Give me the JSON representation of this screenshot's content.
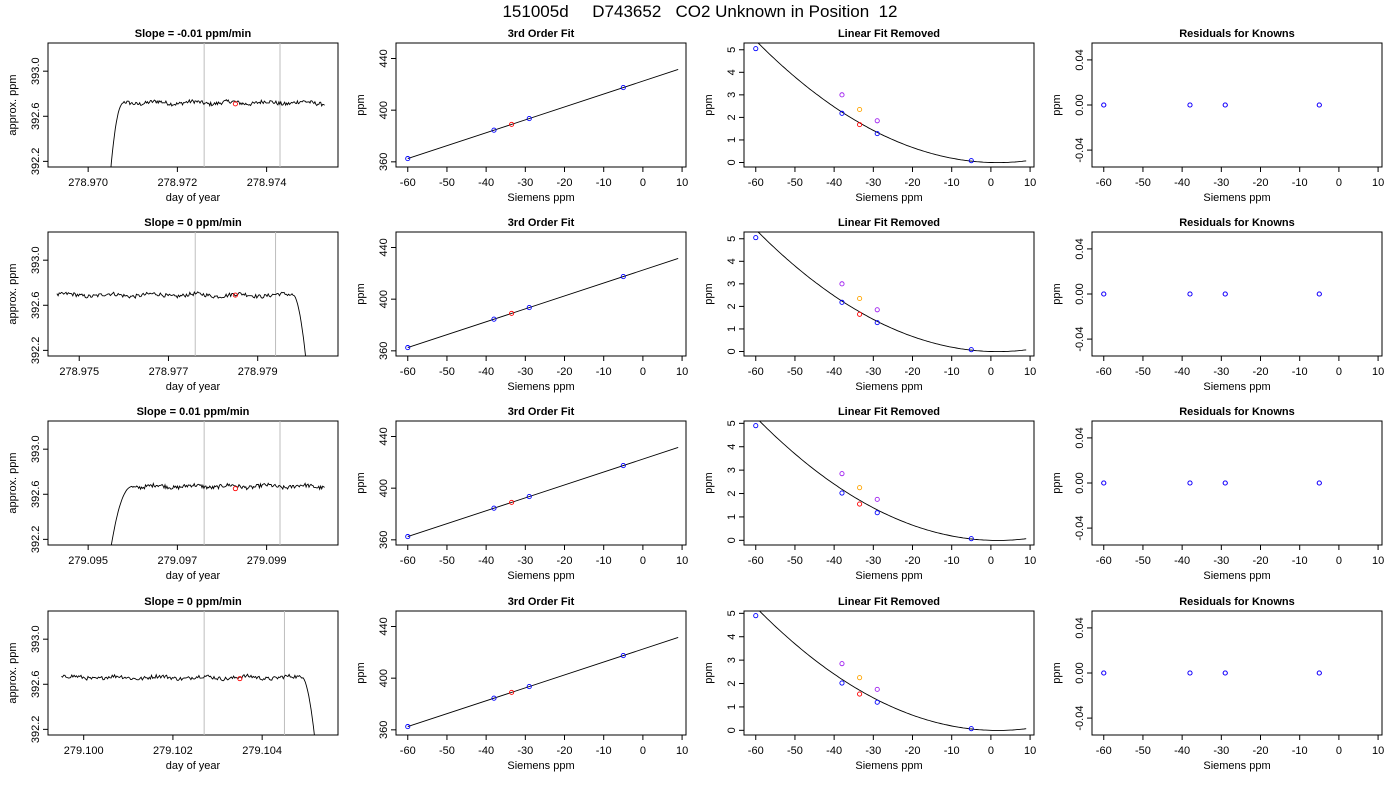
{
  "page": {
    "title": "151005d     D743652   CO2 Unknown in Position  12"
  },
  "colors": {
    "trace": "#000000",
    "window": "#bebebe",
    "average": "#ff0000",
    "known": "#0000ff",
    "unknown": "#ff0000",
    "ref_a": "#ffa500",
    "ref_b": "#a020f0"
  },
  "chart_data": [
    {
      "type": "line",
      "panel": "trace",
      "row": 0,
      "title": "Slope =  -0.01  ppm/min",
      "xlabel": "day of year",
      "ylabel": "approx. ppm",
      "xlim": [
        278.9691,
        278.9756
      ],
      "ylim": [
        392.15,
        393.25
      ],
      "xticks": [
        278.97,
        278.972,
        278.974
      ],
      "xtick_labels": [
        "278.970",
        "278.972",
        "278.974"
      ],
      "yticks": [
        392.2,
        392.6,
        393.0
      ],
      "ytick_labels": [
        "392.2",
        "392.6",
        "393.0"
      ],
      "trace": {
        "x_start": 278.9705,
        "x_end": 278.9753,
        "rise_end": 278.9708,
        "level": 392.72
      },
      "window_lines": [
        278.9726,
        278.9743
      ],
      "average_point": [
        278.9733,
        392.71
      ]
    },
    {
      "type": "scatter",
      "panel": "fit",
      "row": 0,
      "title": "3rd Order Fit",
      "xlabel": "Siemens ppm",
      "ylabel": "ppm",
      "xlim": [
        -63,
        11
      ],
      "ylim": [
        356,
        452
      ],
      "xticks": [
        -60,
        -50,
        -40,
        -30,
        -20,
        -10,
        0,
        10
      ],
      "xtick_labels": [
        "-60",
        "-50",
        "-40",
        "-30",
        "-20",
        "-10",
        "0",
        "10"
      ],
      "yticks": [
        360,
        400,
        440
      ],
      "ytick_labels": [
        "360",
        "400",
        "440"
      ],
      "fit_line": {
        "x": [
          -60,
          9
        ],
        "slope": 1.0,
        "intercept": 422.5
      },
      "knowns": [
        [
          -60,
          362.5
        ],
        [
          -38,
          384.5
        ],
        [
          -29,
          393.5
        ],
        [
          -5,
          417.5
        ]
      ],
      "unknown": [
        -33.5,
        389.0
      ]
    },
    {
      "type": "line",
      "panel": "removed",
      "row": 0,
      "title": "Linear Fit Removed",
      "xlabel": "Siemens ppm",
      "ylabel": "ppm",
      "xlim": [
        -63,
        11
      ],
      "ylim": [
        -0.2,
        5.3
      ],
      "xticks": [
        -60,
        -50,
        -40,
        -30,
        -20,
        -10,
        0,
        10
      ],
      "xtick_labels": [
        "-60",
        "-50",
        "-40",
        "-30",
        "-20",
        "-10",
        "0",
        "10"
      ],
      "yticks": [
        0,
        1,
        2,
        3,
        4,
        5
      ],
      "ytick_labels": [
        "0",
        "1",
        "2",
        "3",
        "4",
        "5"
      ],
      "curve": {
        "x": [
          -60,
          9
        ],
        "coef": [
          0.0,
          -0.0049,
          0.00142
        ]
      },
      "knowns": [
        [
          -60,
          5.05
        ],
        [
          -38,
          2.18
        ],
        [
          -29,
          1.28
        ],
        [
          -5,
          0.08
        ]
      ],
      "unknown": [
        -33.5,
        1.68
      ],
      "references": [
        {
          "x": -33.5,
          "y": 2.35,
          "key": "ref_a"
        },
        {
          "x": -38,
          "y": 3.0,
          "key": "ref_b"
        },
        {
          "x": -29,
          "y": 1.85,
          "key": "ref_b"
        }
      ]
    },
    {
      "type": "scatter",
      "panel": "residuals",
      "row": 0,
      "title": "Residuals for Knowns",
      "xlabel": "Siemens ppm",
      "ylabel": "ppm",
      "xlim": [
        -63,
        11
      ],
      "ylim": [
        -0.055,
        0.055
      ],
      "xticks": [
        -60,
        -50,
        -40,
        -30,
        -20,
        -10,
        0,
        10
      ],
      "xtick_labels": [
        "-60",
        "-50",
        "-40",
        "-30",
        "-20",
        "-10",
        "0",
        "10"
      ],
      "yticks": [
        -0.04,
        0.0,
        0.04
      ],
      "ytick_labels": [
        "-0.04",
        "0.00",
        "0.04"
      ],
      "points": [
        [
          -60,
          0
        ],
        [
          -38,
          0
        ],
        [
          -29,
          0
        ],
        [
          -5,
          0
        ]
      ]
    },
    {
      "type": "line",
      "panel": "trace",
      "row": 1,
      "title": "Slope =  0  ppm/min",
      "xlabel": "day of year",
      "ylabel": "approx. ppm",
      "xlim": [
        278.9743,
        278.9808
      ],
      "ylim": [
        392.15,
        393.25
      ],
      "xticks": [
        278.975,
        278.977,
        278.979
      ],
      "xtick_labels": [
        "278.975",
        "278.977",
        "278.979"
      ],
      "yticks": [
        392.2,
        392.6,
        393.0
      ],
      "ytick_labels": [
        "392.2",
        "392.6",
        "393.0"
      ],
      "trace": {
        "x_start": 278.9745,
        "x_end": 278.9801,
        "fall_start": 278.9798,
        "level": 392.69
      },
      "window_lines": [
        278.9776,
        278.9794
      ],
      "average_point": [
        278.9785,
        392.69
      ]
    },
    {
      "type": "scatter",
      "panel": "fit",
      "row": 1,
      "title": "3rd Order Fit",
      "xlabel": "Siemens ppm",
      "ylabel": "ppm",
      "xlim": [
        -63,
        11
      ],
      "ylim": [
        356,
        452
      ],
      "xticks": [
        -60,
        -50,
        -40,
        -30,
        -20,
        -10,
        0,
        10
      ],
      "xtick_labels": [
        "-60",
        "-50",
        "-40",
        "-30",
        "-20",
        "-10",
        "0",
        "10"
      ],
      "yticks": [
        360,
        400,
        440
      ],
      "ytick_labels": [
        "360",
        "400",
        "440"
      ],
      "fit_line": {
        "x": [
          -60,
          9
        ],
        "slope": 1.0,
        "intercept": 422.5
      },
      "knowns": [
        [
          -60,
          362.5
        ],
        [
          -38,
          384.5
        ],
        [
          -29,
          393.5
        ],
        [
          -5,
          417.5
        ]
      ],
      "unknown": [
        -33.5,
        389.0
      ]
    },
    {
      "type": "line",
      "panel": "removed",
      "row": 1,
      "title": "Linear Fit Removed",
      "xlabel": "Siemens ppm",
      "ylabel": "ppm",
      "xlim": [
        -63,
        11
      ],
      "ylim": [
        -0.2,
        5.3
      ],
      "xticks": [
        -60,
        -50,
        -40,
        -30,
        -20,
        -10,
        0,
        10
      ],
      "xtick_labels": [
        "-60",
        "-50",
        "-40",
        "-30",
        "-20",
        "-10",
        "0",
        "10"
      ],
      "yticks": [
        0,
        1,
        2,
        3,
        4,
        5
      ],
      "ytick_labels": [
        "0",
        "1",
        "2",
        "3",
        "4",
        "5"
      ],
      "curve": {
        "x": [
          -60,
          9
        ],
        "coef": [
          0.0,
          -0.0049,
          0.00142
        ]
      },
      "knowns": [
        [
          -60,
          5.05
        ],
        [
          -38,
          2.18
        ],
        [
          -29,
          1.28
        ],
        [
          -5,
          0.08
        ]
      ],
      "unknown": [
        -33.5,
        1.65
      ],
      "references": [
        {
          "x": -33.5,
          "y": 2.35,
          "key": "ref_a"
        },
        {
          "x": -38,
          "y": 3.0,
          "key": "ref_b"
        },
        {
          "x": -29,
          "y": 1.85,
          "key": "ref_b"
        }
      ]
    },
    {
      "type": "scatter",
      "panel": "residuals",
      "row": 1,
      "title": "Residuals for Knowns",
      "xlabel": "Siemens ppm",
      "ylabel": "ppm",
      "xlim": [
        -63,
        11
      ],
      "ylim": [
        -0.055,
        0.055
      ],
      "xticks": [
        -60,
        -50,
        -40,
        -30,
        -20,
        -10,
        0,
        10
      ],
      "xtick_labels": [
        "-60",
        "-50",
        "-40",
        "-30",
        "-20",
        "-10",
        "0",
        "10"
      ],
      "yticks": [
        -0.04,
        0.0,
        0.04
      ],
      "ytick_labels": [
        "-0.04",
        "0.00",
        "0.04"
      ],
      "points": [
        [
          -60,
          0
        ],
        [
          -38,
          0
        ],
        [
          -29,
          0
        ],
        [
          -5,
          0
        ]
      ]
    },
    {
      "type": "line",
      "panel": "trace",
      "row": 2,
      "title": "Slope =  0.01  ppm/min",
      "xlabel": "day of year",
      "ylabel": "approx. ppm",
      "xlim": [
        279.0941,
        279.1006
      ],
      "ylim": [
        392.15,
        393.25
      ],
      "xticks": [
        279.095,
        279.097,
        279.099
      ],
      "xtick_labels": [
        "279.095",
        "279.097",
        "279.099"
      ],
      "yticks": [
        392.2,
        392.6,
        393.0
      ],
      "ytick_labels": [
        "392.2",
        "392.6",
        "393.0"
      ],
      "trace": {
        "x_start": 279.0955,
        "x_end": 279.1003,
        "rise_end": 279.096,
        "level": 392.67
      },
      "window_lines": [
        279.0976,
        279.0993
      ],
      "average_point": [
        279.0983,
        392.65
      ]
    },
    {
      "type": "scatter",
      "panel": "fit",
      "row": 2,
      "title": "3rd Order Fit",
      "xlabel": "Siemens ppm",
      "ylabel": "ppm",
      "xlim": [
        -63,
        11
      ],
      "ylim": [
        356,
        452
      ],
      "xticks": [
        -60,
        -50,
        -40,
        -30,
        -20,
        -10,
        0,
        10
      ],
      "xtick_labels": [
        "-60",
        "-50",
        "-40",
        "-30",
        "-20",
        "-10",
        "0",
        "10"
      ],
      "yticks": [
        360,
        400,
        440
      ],
      "ytick_labels": [
        "360",
        "400",
        "440"
      ],
      "fit_line": {
        "x": [
          -60,
          9
        ],
        "slope": 1.0,
        "intercept": 422.5
      },
      "knowns": [
        [
          -60,
          362.5
        ],
        [
          -38,
          384.5
        ],
        [
          -29,
          393.5
        ],
        [
          -5,
          417.5
        ]
      ],
      "unknown": [
        -33.5,
        389.0
      ]
    },
    {
      "type": "line",
      "panel": "removed",
      "row": 2,
      "title": "Linear Fit Removed",
      "xlabel": "Siemens ppm",
      "ylabel": "ppm",
      "xlim": [
        -63,
        11
      ],
      "ylim": [
        -0.2,
        5.1
      ],
      "xticks": [
        -60,
        -50,
        -40,
        -30,
        -20,
        -10,
        0,
        10
      ],
      "xtick_labels": [
        "-60",
        "-50",
        "-40",
        "-30",
        "-20",
        "-10",
        "0",
        "10"
      ],
      "yticks": [
        0,
        1,
        2,
        3,
        4,
        5
      ],
      "ytick_labels": [
        "0",
        "1",
        "2",
        "3",
        "4",
        "5"
      ],
      "curve": {
        "x": [
          -60,
          9
        ],
        "coef": [
          0.0,
          -0.0049,
          0.00138
        ]
      },
      "knowns": [
        [
          -60,
          4.9
        ],
        [
          -38,
          2.02
        ],
        [
          -29,
          1.18
        ],
        [
          -5,
          0.07
        ]
      ],
      "unknown": [
        -33.5,
        1.55
      ],
      "references": [
        {
          "x": -33.5,
          "y": 2.25,
          "key": "ref_a"
        },
        {
          "x": -38,
          "y": 2.85,
          "key": "ref_b"
        },
        {
          "x": -29,
          "y": 1.75,
          "key": "ref_b"
        }
      ]
    },
    {
      "type": "scatter",
      "panel": "residuals",
      "row": 2,
      "title": "Residuals for Knowns",
      "xlabel": "Siemens ppm",
      "ylabel": "ppm",
      "xlim": [
        -63,
        11
      ],
      "ylim": [
        -0.055,
        0.055
      ],
      "xticks": [
        -60,
        -50,
        -40,
        -30,
        -20,
        -10,
        0,
        10
      ],
      "xtick_labels": [
        "-60",
        "-50",
        "-40",
        "-30",
        "-20",
        "-10",
        "0",
        "10"
      ],
      "yticks": [
        -0.04,
        0.0,
        0.04
      ],
      "ytick_labels": [
        "-0.04",
        "0.00",
        "0.04"
      ],
      "points": [
        [
          -60,
          0
        ],
        [
          -38,
          0
        ],
        [
          -29,
          0
        ],
        [
          -5,
          0
        ]
      ]
    },
    {
      "type": "line",
      "panel": "trace",
      "row": 3,
      "title": "Slope =  0  ppm/min",
      "xlabel": "day of year",
      "ylabel": "approx. ppm",
      "xlim": [
        279.0992,
        279.1057
      ],
      "ylim": [
        392.15,
        393.25
      ],
      "xticks": [
        279.1,
        279.102,
        279.104
      ],
      "xtick_labels": [
        "279.100",
        "279.102",
        "279.104"
      ],
      "yticks": [
        392.2,
        392.6,
        393.0
      ],
      "ytick_labels": [
        "392.2",
        "392.6",
        "393.0"
      ],
      "trace": {
        "x_start": 279.0995,
        "x_end": 279.1052,
        "fall_start": 279.1049,
        "level": 392.66
      },
      "window_lines": [
        279.1027,
        279.1045
      ],
      "average_point": [
        279.1035,
        392.65
      ]
    },
    {
      "type": "scatter",
      "panel": "fit",
      "row": 3,
      "title": "3rd Order Fit",
      "xlabel": "Siemens ppm",
      "ylabel": "ppm",
      "xlim": [
        -63,
        11
      ],
      "ylim": [
        356,
        452
      ],
      "xticks": [
        -60,
        -50,
        -40,
        -30,
        -20,
        -10,
        0,
        10
      ],
      "xtick_labels": [
        "-60",
        "-50",
        "-40",
        "-30",
        "-20",
        "-10",
        "0",
        "10"
      ],
      "yticks": [
        360,
        400,
        440
      ],
      "ytick_labels": [
        "360",
        "400",
        "440"
      ],
      "fit_line": {
        "x": [
          -60,
          9
        ],
        "slope": 1.0,
        "intercept": 422.5
      },
      "knowns": [
        [
          -60,
          362.5
        ],
        [
          -38,
          384.5
        ],
        [
          -29,
          393.5
        ],
        [
          -5,
          417.5
        ]
      ],
      "unknown": [
        -33.5,
        389.0
      ]
    },
    {
      "type": "line",
      "panel": "removed",
      "row": 3,
      "title": "Linear Fit Removed",
      "xlabel": "Siemens ppm",
      "ylabel": "ppm",
      "xlim": [
        -63,
        11
      ],
      "ylim": [
        -0.2,
        5.1
      ],
      "xticks": [
        -60,
        -50,
        -40,
        -30,
        -20,
        -10,
        0,
        10
      ],
      "xtick_labels": [
        "-60",
        "-50",
        "-40",
        "-30",
        "-20",
        "-10",
        "0",
        "10"
      ],
      "yticks": [
        0,
        1,
        2,
        3,
        4,
        5
      ],
      "ytick_labels": [
        "0",
        "1",
        "2",
        "3",
        "4",
        "5"
      ],
      "curve": {
        "x": [
          -60,
          9
        ],
        "coef": [
          0.0,
          -0.0049,
          0.00138
        ]
      },
      "knowns": [
        [
          -60,
          4.9
        ],
        [
          -38,
          2.02
        ],
        [
          -29,
          1.2
        ],
        [
          -5,
          0.07
        ]
      ],
      "unknown": [
        -33.5,
        1.55
      ],
      "references": [
        {
          "x": -33.5,
          "y": 2.25,
          "key": "ref_a"
        },
        {
          "x": -38,
          "y": 2.85,
          "key": "ref_b"
        },
        {
          "x": -29,
          "y": 1.75,
          "key": "ref_b"
        }
      ]
    },
    {
      "type": "scatter",
      "panel": "residuals",
      "row": 3,
      "title": "Residuals for Knowns",
      "xlabel": "Siemens ppm",
      "ylabel": "ppm",
      "xlim": [
        -63,
        11
      ],
      "ylim": [
        -0.055,
        0.055
      ],
      "xticks": [
        -60,
        -50,
        -40,
        -30,
        -20,
        -10,
        0,
        10
      ],
      "xtick_labels": [
        "-60",
        "-50",
        "-40",
        "-30",
        "-20",
        "-10",
        "0",
        "10"
      ],
      "yticks": [
        -0.04,
        0.0,
        0.04
      ],
      "ytick_labels": [
        "-0.04",
        "0.00",
        "0.04"
      ],
      "points": [
        [
          -60,
          0
        ],
        [
          -38,
          0
        ],
        [
          -29,
          0
        ],
        [
          -5,
          0
        ]
      ]
    }
  ]
}
